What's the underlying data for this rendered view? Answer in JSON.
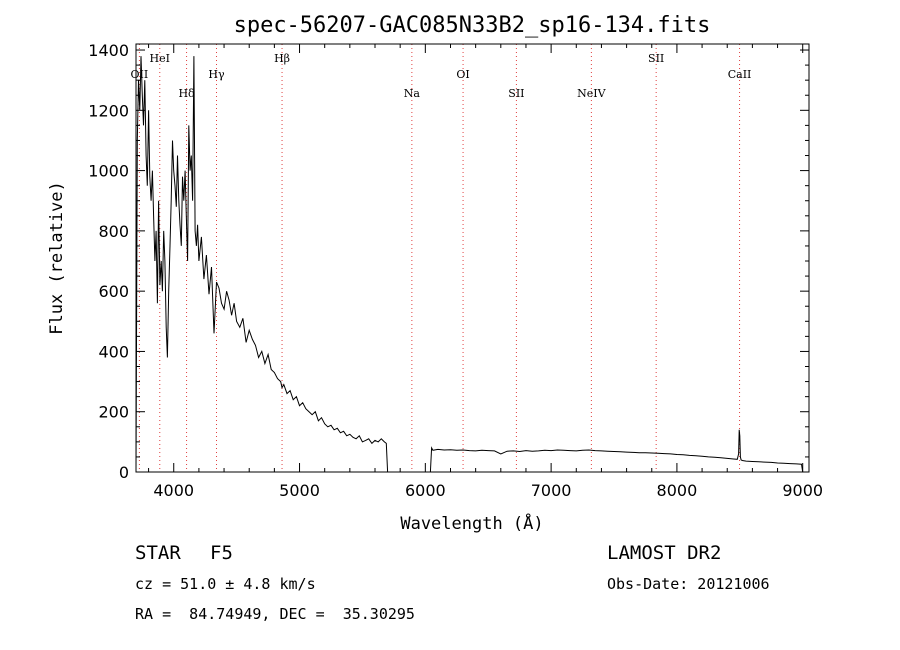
{
  "chart_data": {
    "type": "line",
    "title": "spec-56207-GAC085N33B2_sp16-134.fits",
    "xlabel": "Wavelength (Å)",
    "ylabel": "Flux (relative)",
    "xlim": [
      3700,
      9050
    ],
    "ylim": [
      0,
      1420
    ],
    "xticks": [
      4000,
      5000,
      6000,
      7000,
      8000,
      9000
    ],
    "yticks": [
      0,
      200,
      400,
      600,
      800,
      1000,
      1200,
      1400
    ],
    "grid": false,
    "line_color": "#000000",
    "marker_color": "#e04040",
    "lines": [
      {
        "label": "OII",
        "wavelength": 3727,
        "row": 1
      },
      {
        "label": "HeI",
        "wavelength": 3889,
        "row": 0
      },
      {
        "label": "Hδ",
        "wavelength": 4102,
        "row": 2
      },
      {
        "label": "Hγ",
        "wavelength": 4340,
        "row": 1
      },
      {
        "label": "Hβ",
        "wavelength": 4861,
        "row": 0
      },
      {
        "label": "Na",
        "wavelength": 5893,
        "row": 2
      },
      {
        "label": "OI",
        "wavelength": 6300,
        "row": 1
      },
      {
        "label": "SII",
        "wavelength": 6724,
        "row": 2
      },
      {
        "label": "NeIV",
        "wavelength": 7320,
        "row": 2
      },
      {
        "label": "SII",
        "wavelength": 7835,
        "row": 0
      },
      {
        "label": "CaII",
        "wavelength": 8498,
        "row": 1
      }
    ],
    "series": [
      {
        "x": [
          3700,
          3710,
          3720,
          3730,
          3740,
          3750,
          3760,
          3770,
          3780,
          3790,
          3800,
          3810,
          3820,
          3830,
          3840,
          3850,
          3860,
          3870,
          3880,
          3890,
          3900,
          3910,
          3920,
          3930,
          3940,
          3950,
          3960,
          3970,
          3980,
          3990,
          4000,
          4010,
          4020,
          4030,
          4040,
          4050,
          4060,
          4070,
          4080,
          4090,
          4100,
          4110,
          4120,
          4130,
          4140,
          4150,
          4160,
          4170,
          4180,
          4190,
          4200,
          4220,
          4240,
          4260,
          4280,
          4300,
          4320,
          4340,
          4360,
          4380,
          4400,
          4420,
          4440,
          4460,
          4480,
          4500,
          4525,
          4550,
          4575,
          4600,
          4625,
          4650,
          4675,
          4700,
          4725,
          4750,
          4775,
          4800,
          4825,
          4850,
          4861,
          4875,
          4900,
          4925,
          4950,
          4975,
          5000,
          5025,
          5050,
          5075,
          5100,
          5125,
          5150,
          5175,
          5200,
          5225,
          5250,
          5275,
          5300,
          5325,
          5350,
          5375,
          5400,
          5425,
          5450,
          5475,
          5500,
          5525,
          5550,
          5575,
          5600,
          5625,
          5650,
          5675,
          5690,
          5700
        ],
        "y": [
          0,
          1100,
          1300,
          1200,
          1380,
          1250,
          1150,
          1300,
          1050,
          950,
          1200,
          980,
          900,
          1000,
          850,
          700,
          800,
          560,
          900,
          620,
          700,
          600,
          800,
          700,
          480,
          380,
          600,
          750,
          900,
          1100,
          1000,
          950,
          880,
          1050,
          900,
          820,
          750,
          980,
          900,
          1000,
          850,
          700,
          1150,
          1000,
          1050,
          900,
          1380,
          800,
          750,
          820,
          700,
          780,
          640,
          720,
          590,
          680,
          460,
          630,
          610,
          560,
          540,
          600,
          570,
          520,
          560,
          500,
          480,
          510,
          430,
          470,
          440,
          420,
          380,
          400,
          360,
          390,
          340,
          330,
          310,
          300,
          280,
          290,
          260,
          270,
          240,
          250,
          220,
          230,
          210,
          200,
          190,
          200,
          170,
          180,
          160,
          150,
          155,
          140,
          145,
          130,
          135,
          120,
          125,
          115,
          110,
          120,
          100,
          105,
          110,
          95,
          105,
          100,
          110,
          100,
          95,
          0
        ]
      },
      {
        "x": [
          6040,
          6050,
          6060,
          6100,
          6150,
          6200,
          6250,
          6300,
          6350,
          6400,
          6450,
          6500,
          6550,
          6600,
          6650,
          6700,
          6750,
          6800,
          6850,
          6900,
          6950,
          7000,
          7050,
          7100,
          7150,
          7200,
          7250,
          7300,
          7350,
          7400,
          7450,
          7500,
          7550,
          7600,
          7650,
          7700,
          7750,
          7800,
          7850,
          7900,
          7950,
          8000,
          8050,
          8100,
          8150,
          8200,
          8250,
          8300,
          8350,
          8400,
          8450,
          8480,
          8490,
          8495,
          8500,
          8505,
          8510,
          8520,
          8550,
          8600,
          8650,
          8700,
          8750,
          8800,
          8850,
          8900,
          8950,
          8990,
          9000
        ],
        "y": [
          0,
          80,
          72,
          75,
          73,
          74,
          72,
          73,
          71,
          70,
          72,
          71,
          70,
          60,
          69,
          70,
          68,
          71,
          69,
          70,
          72,
          71,
          73,
          72,
          71,
          70,
          72,
          73,
          71,
          70,
          69,
          68,
          67,
          66,
          65,
          64,
          64,
          63,
          62,
          61,
          60,
          58,
          57,
          55,
          54,
          52,
          50,
          49,
          47,
          45,
          43,
          42,
          60,
          140,
          120,
          50,
          40,
          38,
          36,
          35,
          34,
          33,
          32,
          30,
          29,
          28,
          27,
          26,
          0
        ]
      }
    ]
  },
  "info": {
    "object_class": "STAR",
    "subclass": "F5",
    "survey": "LAMOST DR2",
    "redshift": "cz = 51.0 ± 4.8 km/s",
    "obs_date": "Obs-Date: 20121006",
    "coords": "RA =  84.74949, DEC =  35.30295"
  }
}
